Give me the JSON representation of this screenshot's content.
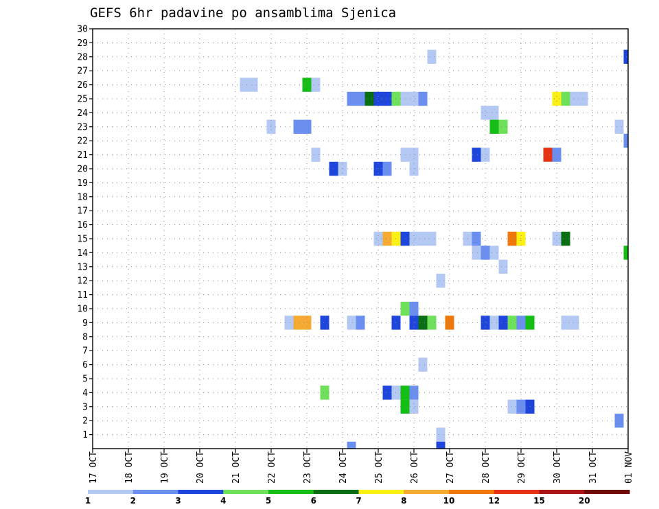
{
  "chart_data": {
    "type": "heatmap",
    "title": "GEFS 6hr padavine po ansamblima Sjenica",
    "x_labels": [
      "17 OCT",
      "18 OCT",
      "19 OCT",
      "20 OCT",
      "21 OCT",
      "22 OCT",
      "23 OCT",
      "24 OCT",
      "25 OCT",
      "26 OCT",
      "27 OCT",
      "28 OCT",
      "29 OCT",
      "30 OCT",
      "31 OCT",
      "01 NOV"
    ],
    "y_labels": [
      "1",
      "2",
      "3",
      "4",
      "5",
      "6",
      "7",
      "8",
      "9",
      "10",
      "11",
      "12",
      "13",
      "14",
      "15",
      "16",
      "17",
      "18",
      "19",
      "20",
      "21",
      "22",
      "23",
      "24",
      "25",
      "26",
      "27",
      "28",
      "29",
      "30"
    ],
    "xlim_days": [
      0,
      15
    ],
    "ylim": [
      0,
      30
    ],
    "grid": true,
    "legend": {
      "position": "bottom",
      "labels": [
        "1",
        "2",
        "3",
        "4",
        "5",
        "6",
        "7",
        "8",
        "10",
        "12",
        "15",
        "20"
      ],
      "colors": [
        "#b4c8f4",
        "#6a8ff0",
        "#1e46dc",
        "#6ee05a",
        "#14be14",
        "#0a6e14",
        "#faf014",
        "#f5aa32",
        "#f0780a",
        "#e63214",
        "#aa1414",
        "#6e0a0a"
      ]
    },
    "cells": [
      [
        28,
        9.5,
        0
      ],
      [
        28,
        15,
        2
      ],
      [
        26,
        4.25,
        0
      ],
      [
        26,
        4.5,
        0
      ],
      [
        26,
        6,
        4
      ],
      [
        26,
        6.25,
        0
      ],
      [
        25,
        7.25,
        1
      ],
      [
        25,
        7.5,
        1
      ],
      [
        25,
        7.75,
        5
      ],
      [
        25,
        8,
        2
      ],
      [
        25,
        8.25,
        2
      ],
      [
        25,
        8.5,
        3
      ],
      [
        25,
        8.75,
        0
      ],
      [
        25,
        9,
        0
      ],
      [
        25,
        9.25,
        1
      ],
      [
        25,
        13,
        6
      ],
      [
        25,
        13.25,
        3
      ],
      [
        25,
        13.5,
        0
      ],
      [
        25,
        13.75,
        0
      ],
      [
        24,
        11,
        0
      ],
      [
        24,
        11.25,
        0
      ],
      [
        23,
        5,
        0
      ],
      [
        23,
        5.75,
        1
      ],
      [
        23,
        6,
        1
      ],
      [
        23,
        11.25,
        4
      ],
      [
        23,
        11.5,
        3
      ],
      [
        23,
        14.75,
        0
      ],
      [
        22,
        15,
        1
      ],
      [
        21,
        6.25,
        0
      ],
      [
        21,
        8.75,
        0
      ],
      [
        21,
        9,
        0
      ],
      [
        21,
        10.75,
        2
      ],
      [
        21,
        11,
        0
      ],
      [
        21,
        12.75,
        9
      ],
      [
        21,
        13,
        1
      ],
      [
        20,
        6.75,
        2
      ],
      [
        20,
        7,
        0
      ],
      [
        20,
        8,
        2
      ],
      [
        20,
        8.25,
        1
      ],
      [
        20,
        9,
        0
      ],
      [
        15,
        8,
        0
      ],
      [
        15,
        8.25,
        7
      ],
      [
        15,
        8.5,
        6
      ],
      [
        15,
        8.75,
        2
      ],
      [
        15,
        9,
        0
      ],
      [
        15,
        9.25,
        0
      ],
      [
        15,
        9.5,
        0
      ],
      [
        15,
        10.5,
        0
      ],
      [
        15,
        10.75,
        1
      ],
      [
        15,
        11.75,
        8
      ],
      [
        15,
        12,
        6
      ],
      [
        15,
        13,
        0
      ],
      [
        15,
        13.25,
        5
      ],
      [
        14,
        10.75,
        0
      ],
      [
        14,
        11,
        1
      ],
      [
        14,
        11.25,
        0
      ],
      [
        14,
        15,
        4
      ],
      [
        13,
        11.5,
        0
      ],
      [
        12,
        9.75,
        0
      ],
      [
        10,
        8.75,
        3
      ],
      [
        10,
        9,
        1
      ],
      [
        9,
        5.5,
        0
      ],
      [
        9,
        5.75,
        7
      ],
      [
        9,
        6,
        7
      ],
      [
        9,
        6.5,
        2
      ],
      [
        9,
        7.25,
        0
      ],
      [
        9,
        7.5,
        1
      ],
      [
        9,
        8.5,
        2
      ],
      [
        9,
        9,
        2
      ],
      [
        9,
        9.25,
        5
      ],
      [
        9,
        9.5,
        3
      ],
      [
        9,
        10,
        8
      ],
      [
        9,
        11,
        2
      ],
      [
        9,
        11.25,
        0
      ],
      [
        9,
        11.5,
        2
      ],
      [
        9,
        11.75,
        3
      ],
      [
        9,
        12,
        1
      ],
      [
        9,
        12.25,
        4
      ],
      [
        9,
        13.25,
        0
      ],
      [
        9,
        13.5,
        0
      ],
      [
        6,
        9.25,
        0
      ],
      [
        4,
        6.5,
        3
      ],
      [
        4,
        8.25,
        2
      ],
      [
        4,
        8.5,
        0
      ],
      [
        4,
        8.75,
        4
      ],
      [
        4,
        9,
        1
      ],
      [
        3,
        8.75,
        4
      ],
      [
        3,
        9,
        0
      ],
      [
        3,
        11.75,
        0
      ],
      [
        3,
        12,
        1
      ],
      [
        3,
        12.25,
        2
      ],
      [
        2,
        14.75,
        1
      ],
      [
        1,
        9.75,
        0
      ],
      [
        0,
        7.25,
        1
      ],
      [
        0,
        9.75,
        2
      ]
    ]
  }
}
